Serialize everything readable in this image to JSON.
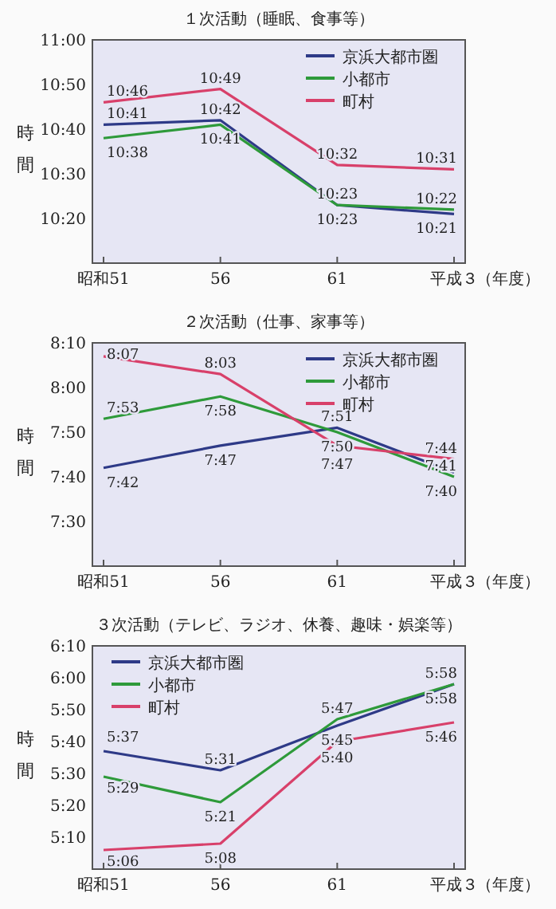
{
  "chart_data": [
    {
      "type": "line",
      "title": "１次活動（睡眠、食事等）",
      "categories": [
        "昭和51",
        "56",
        "61",
        "平成３"
      ],
      "xlabel": "（年度）",
      "ylabel": "時間",
      "ylim": [
        10.1667,
        11
      ],
      "yticks": [
        {
          "value": 10.3333,
          "label": "10:20"
        },
        {
          "value": 10.5,
          "label": "10:30"
        },
        {
          "value": 10.6667,
          "label": "10:40"
        },
        {
          "value": 10.8333,
          "label": "10:50"
        },
        {
          "value": 11,
          "label": "11:00"
        }
      ],
      "legend": "top right",
      "series": [
        {
          "name": "京浜大都市圏",
          "color": "#2e3a87",
          "values": [
            10.6833,
            10.7,
            10.3833,
            10.35
          ],
          "value_labels": [
            "10:41",
            "10:42",
            "10:23",
            "10:21"
          ]
        },
        {
          "name": "小都市",
          "color": "#2e9a3a",
          "values": [
            10.6333,
            10.6833,
            10.3833,
            10.3667
          ],
          "value_labels": [
            "10:38",
            "10:41",
            "10:23",
            "10:22"
          ]
        },
        {
          "name": "町村",
          "color": "#d8406a",
          "values": [
            10.7667,
            10.8167,
            10.5333,
            10.5167
          ],
          "value_labels": [
            "10:46",
            "10:49",
            "10:32",
            "10:31"
          ]
        }
      ]
    },
    {
      "type": "line",
      "title": "２次活動（仕事、家事等）",
      "categories": [
        "昭和51",
        "56",
        "61",
        "平成３"
      ],
      "xlabel": "（年度）",
      "ylabel": "時間",
      "ylim": [
        7.3333,
        8.1667
      ],
      "yticks": [
        {
          "value": 7.5,
          "label": "7:30"
        },
        {
          "value": 7.6667,
          "label": "7:40"
        },
        {
          "value": 7.8333,
          "label": "7:50"
        },
        {
          "value": 8,
          "label": "8:00"
        },
        {
          "value": 8.1667,
          "label": "8:10"
        }
      ],
      "legend": "top right",
      "series": [
        {
          "name": "京浜大都市圏",
          "color": "#2e3a87",
          "values": [
            7.7,
            7.7833,
            7.85,
            7.6833
          ],
          "value_labels": [
            "7:42",
            "7:47",
            "7:51",
            "7:41"
          ]
        },
        {
          "name": "小都市",
          "color": "#2e9a3a",
          "values": [
            7.8833,
            7.9667,
            7.8333,
            7.6667
          ],
          "value_labels": [
            "7:53",
            "7:58",
            "7:50",
            "7:40"
          ]
        },
        {
          "name": "町村",
          "color": "#d8406a",
          "values": [
            8.1167,
            8.05,
            7.7833,
            7.7333
          ],
          "value_labels": [
            "8:07",
            "8:03",
            "7:47",
            "7:44"
          ]
        }
      ]
    },
    {
      "type": "line",
      "title": "３次活動（テレビ、ラジオ、休養、趣味・娯楽等）",
      "categories": [
        "昭和51",
        "56",
        "61",
        "平成３"
      ],
      "xlabel": "（年度）",
      "ylabel": "時間",
      "ylim": [
        5,
        6.1667
      ],
      "yticks": [
        {
          "value": 5.1667,
          "label": "5:10"
        },
        {
          "value": 5.3333,
          "label": "5:20"
        },
        {
          "value": 5.5,
          "label": "5:30"
        },
        {
          "value": 5.6667,
          "label": "5:40"
        },
        {
          "value": 5.8333,
          "label": "5:50"
        },
        {
          "value": 6,
          "label": "6:00"
        },
        {
          "value": 6.1667,
          "label": "6:10"
        }
      ],
      "legend": "top left",
      "series": [
        {
          "name": "京浜大都市圏",
          "color": "#2e3a87",
          "values": [
            5.6167,
            5.5167,
            5.75,
            5.9667
          ],
          "value_labels": [
            "5:37",
            "5:31",
            "5:45",
            "5:58"
          ]
        },
        {
          "name": "小都市",
          "color": "#2e9a3a",
          "values": [
            5.4833,
            5.35,
            5.7833,
            5.9667
          ],
          "value_labels": [
            "5:29",
            "5:21",
            "5:47",
            "5:58"
          ]
        },
        {
          "name": "町村",
          "color": "#d8406a",
          "values": [
            5.1,
            5.1333,
            5.6667,
            5.7667
          ],
          "value_labels": [
            "5:06",
            "5:08",
            "5:40",
            "5:46"
          ]
        }
      ]
    }
  ]
}
